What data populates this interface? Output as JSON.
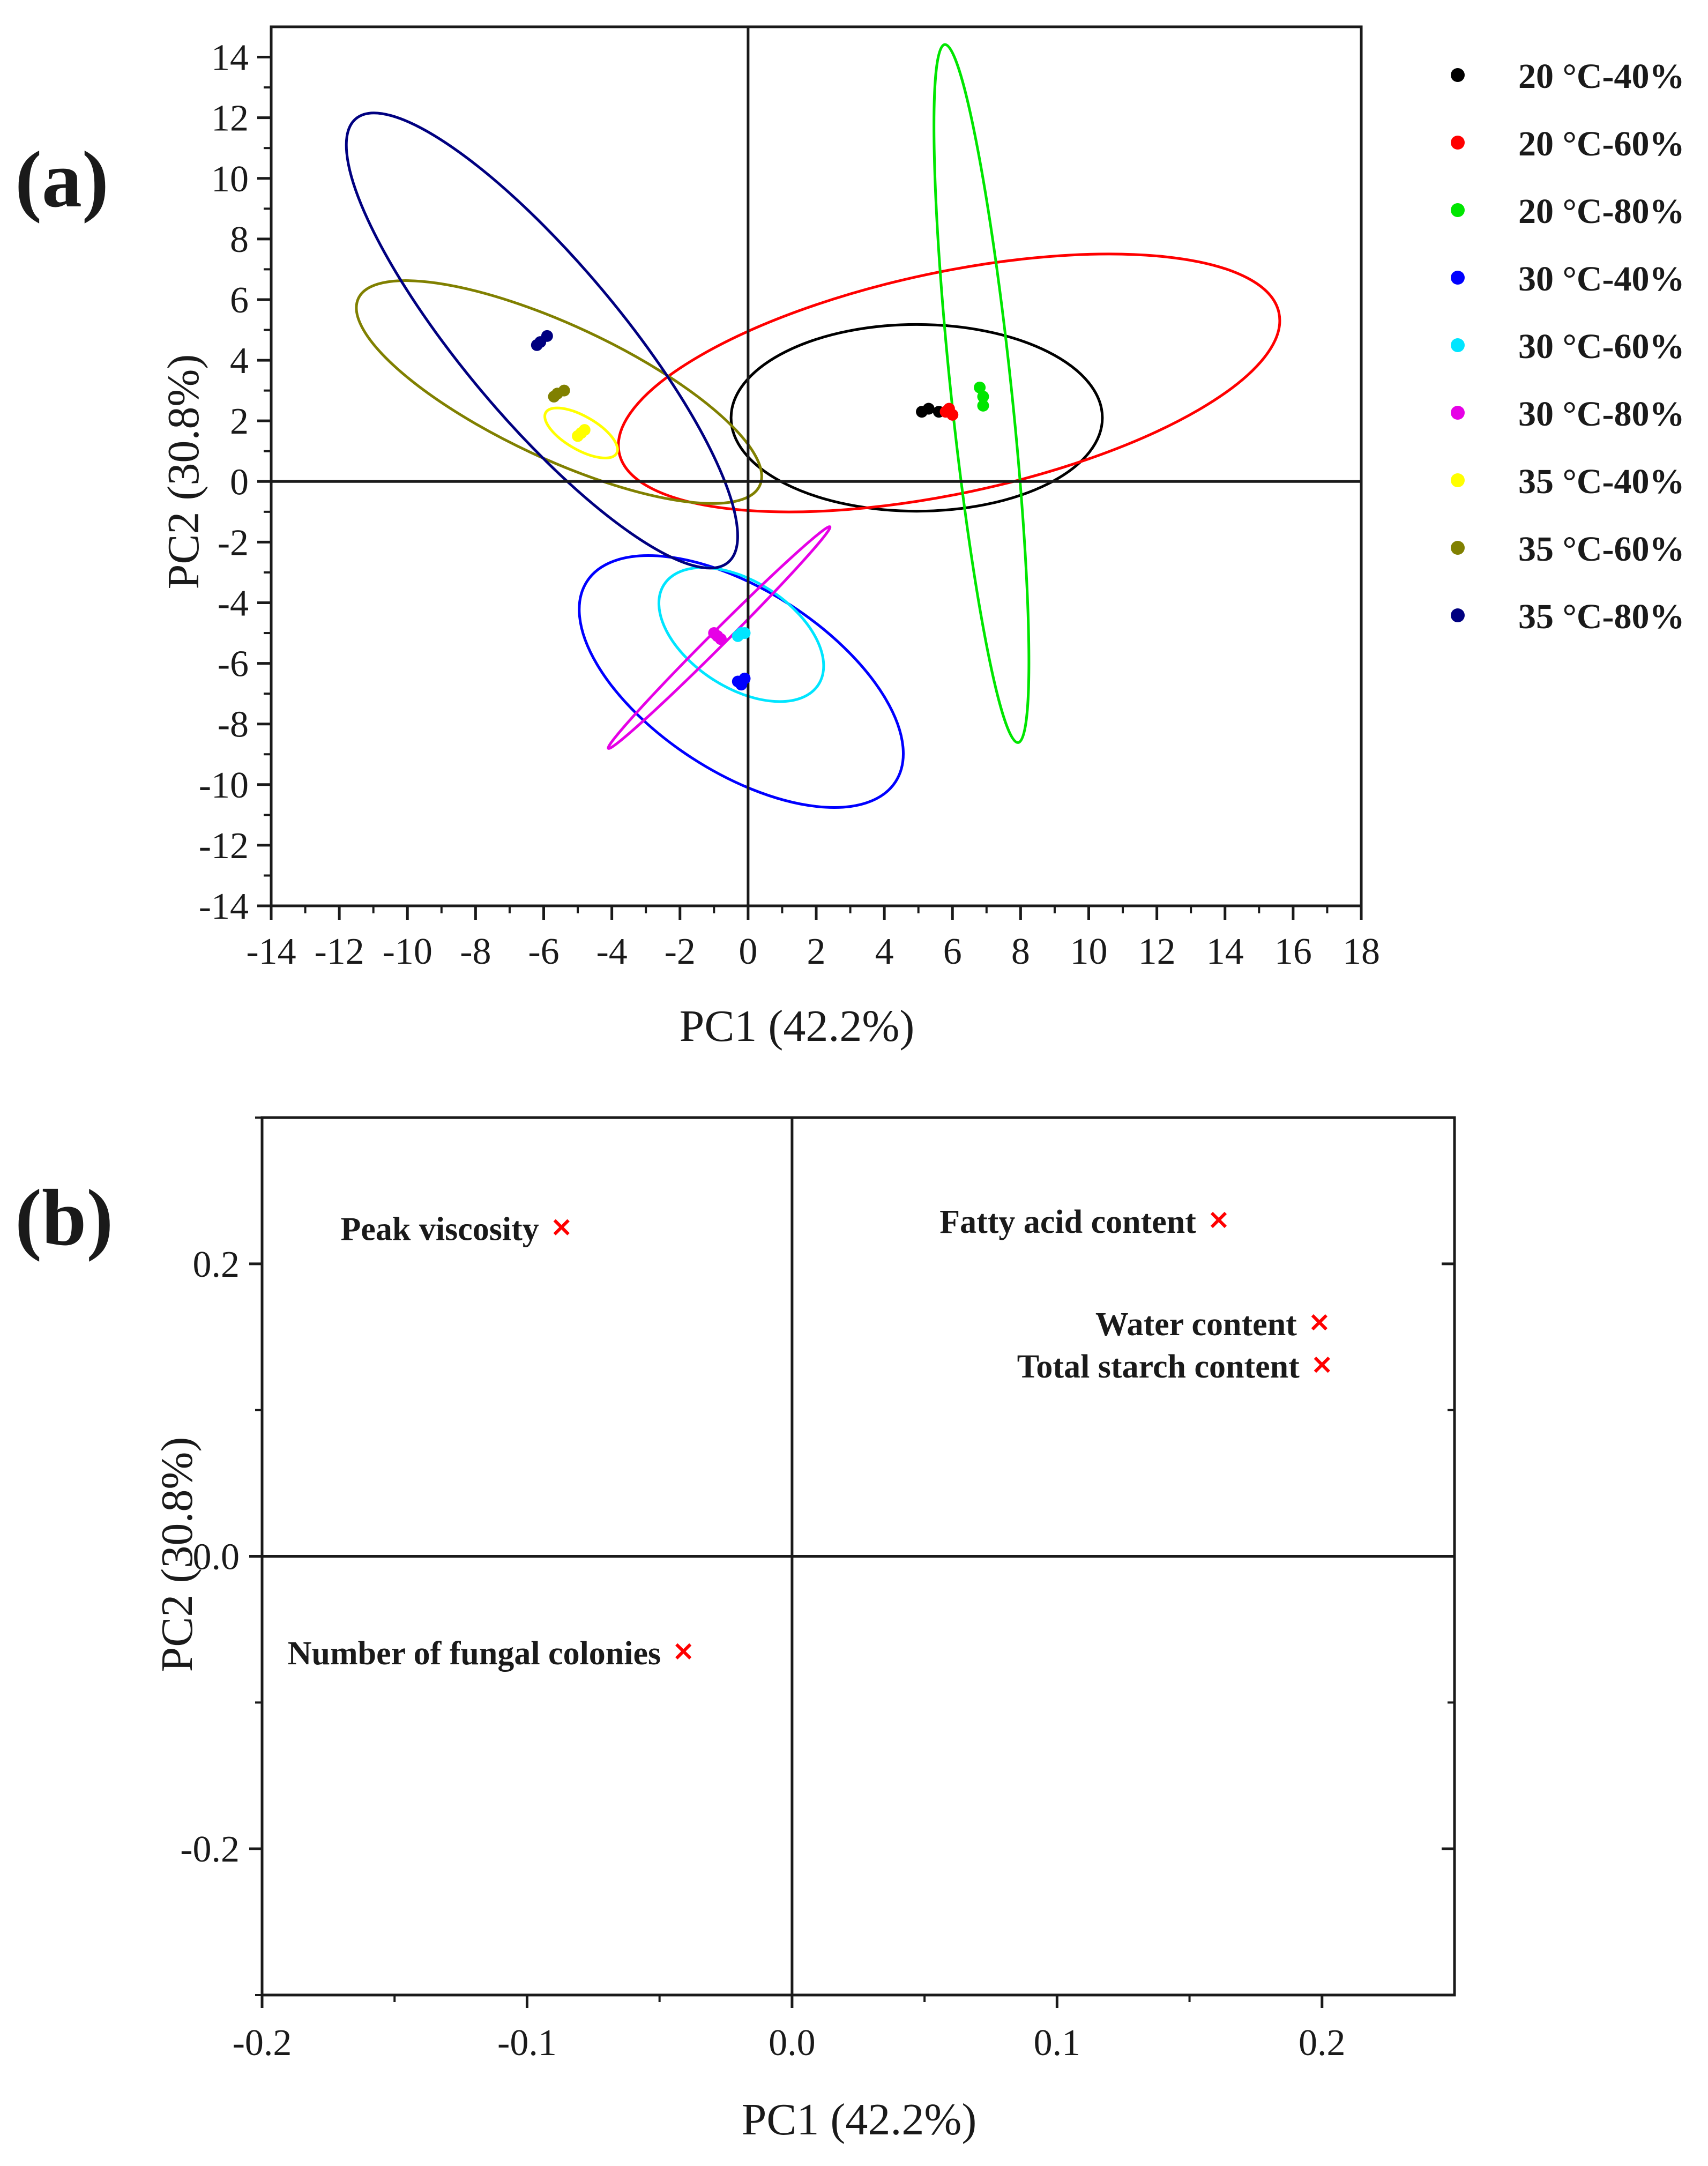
{
  "chart_data": [
    {
      "panel_label": "(a)",
      "type": "scatter",
      "xlabel": "PC1 (42.2%)",
      "ylabel": "PC2 (30.8%)",
      "xlim": [
        -14,
        18
      ],
      "ylim": [
        -14,
        15
      ],
      "xticks": [
        -14,
        -12,
        -10,
        -8,
        -6,
        -4,
        -2,
        0,
        2,
        4,
        6,
        8,
        10,
        12,
        14,
        16,
        18
      ],
      "yticks": [
        -14,
        -12,
        -10,
        -8,
        -6,
        -4,
        -2,
        0,
        2,
        4,
        6,
        8,
        10,
        12,
        14
      ],
      "zero_lines": true,
      "legend_position": "right",
      "series": [
        {
          "name": "20 °C-40%",
          "color": "#000000",
          "points": [
            [
              5.1,
              2.3
            ],
            [
              5.3,
              2.4
            ],
            [
              5.6,
              2.3
            ]
          ],
          "ellipse": {
            "cx": 4.95,
            "cy": 2.1,
            "rx": 5.45,
            "ry": 3.08,
            "angle_deg": 0
          }
        },
        {
          "name": "20 °C-60%",
          "color": "#ff0000",
          "points": [
            [
              5.8,
              2.3
            ],
            [
              6.0,
              2.2
            ],
            [
              5.9,
              2.4
            ]
          ],
          "ellipse": {
            "cx": 5.9,
            "cy": 3.25,
            "rx": 9.9,
            "ry": 3.65,
            "angle_deg": -12
          }
        },
        {
          "name": "20 °C-80%",
          "color": "#00e600",
          "points": [
            [
              6.8,
              3.1
            ],
            [
              6.9,
              2.8
            ],
            [
              6.9,
              2.5
            ]
          ],
          "ellipse": {
            "cx": 6.85,
            "cy": 2.9,
            "rx": 10.3,
            "ry": 1.0,
            "angle_deg": 84
          }
        },
        {
          "name": "30 °C-40%",
          "color": "#0000ff",
          "points": [
            [
              -0.3,
              -6.6
            ],
            [
              -0.1,
              -6.5
            ],
            [
              -0.2,
              -6.7
            ]
          ],
          "ellipse": {
            "cx": -0.2,
            "cy": -6.6,
            "rx": 5.4,
            "ry": 3.0,
            "angle_deg": 33
          }
        },
        {
          "name": "30 °C-60%",
          "color": "#00e5ff",
          "points": [
            [
              -0.2,
              -5.0
            ],
            [
              -0.3,
              -5.1
            ],
            [
              -0.1,
              -5.0
            ]
          ],
          "ellipse": {
            "cx": -0.2,
            "cy": -5.05,
            "rx": 2.7,
            "ry": 1.75,
            "angle_deg": 33
          }
        },
        {
          "name": "30 °C-80%",
          "color": "#e600e6",
          "points": [
            [
              -0.9,
              -5.1
            ],
            [
              -0.8,
              -5.2
            ],
            [
              -1.0,
              -5.0
            ]
          ],
          "ellipse": {
            "cx": -0.85,
            "cy": -5.15,
            "rx": 4.6,
            "ry": 0.25,
            "angle_deg": -45
          }
        },
        {
          "name": "35 °C-40%",
          "color": "#ffff00",
          "points": [
            [
              -4.9,
              1.6
            ],
            [
              -5.0,
              1.5
            ],
            [
              -4.8,
              1.7
            ]
          ],
          "ellipse": {
            "cx": -4.9,
            "cy": 1.6,
            "rx": 1.2,
            "ry": 0.55,
            "angle_deg": 30
          }
        },
        {
          "name": "35 °C-60%",
          "color": "#808000",
          "points": [
            [
              -5.6,
              2.9
            ],
            [
              -5.4,
              3.0
            ],
            [
              -5.7,
              2.8
            ]
          ],
          "ellipse": {
            "cx": -5.55,
            "cy": 2.95,
            "rx": 6.5,
            "ry": 2.2,
            "angle_deg": 25
          }
        },
        {
          "name": "35 °C-80%",
          "color": "#000080",
          "points": [
            [
              -6.2,
              4.5
            ],
            [
              -5.9,
              4.8
            ],
            [
              -6.1,
              4.6
            ]
          ],
          "ellipse": {
            "cx": -6.05,
            "cy": 4.65,
            "rx": 8.5,
            "ry": 2.6,
            "angle_deg": 50
          }
        }
      ]
    },
    {
      "panel_label": "(b)",
      "type": "scatter",
      "xlabel": "PC1 (42.2%)",
      "ylabel": "PC2 (30.8%)",
      "xlim": [
        -0.2,
        0.25
      ],
      "ylim": [
        -0.3,
        0.3
      ],
      "xticks": [
        -0.2,
        -0.1,
        0.0,
        0.1,
        0.2
      ],
      "xtick_labels": [
        "-0.2",
        "-0.1",
        "0.0",
        "0.1",
        "0.2"
      ],
      "yticks": [
        -0.2,
        0.0,
        0.2
      ],
      "ytick_labels": [
        "-0.2",
        "0.0",
        "0.2"
      ],
      "zero_lines": true,
      "marker_color": "#ff0000",
      "points": [
        {
          "label": "Peak viscosity",
          "x": -0.087,
          "y": 0.225,
          "label_side": "left"
        },
        {
          "label": "Fatty acid content",
          "x": 0.161,
          "y": 0.23,
          "label_side": "left"
        },
        {
          "label": "Water content",
          "x": 0.199,
          "y": 0.16,
          "label_side": "left"
        },
        {
          "label": "Total starch content",
          "x": 0.2,
          "y": 0.131,
          "label_side": "left"
        },
        {
          "label": "Number of fungal colonies",
          "x": -0.041,
          "y": -0.065,
          "label_side": "left"
        }
      ]
    }
  ]
}
